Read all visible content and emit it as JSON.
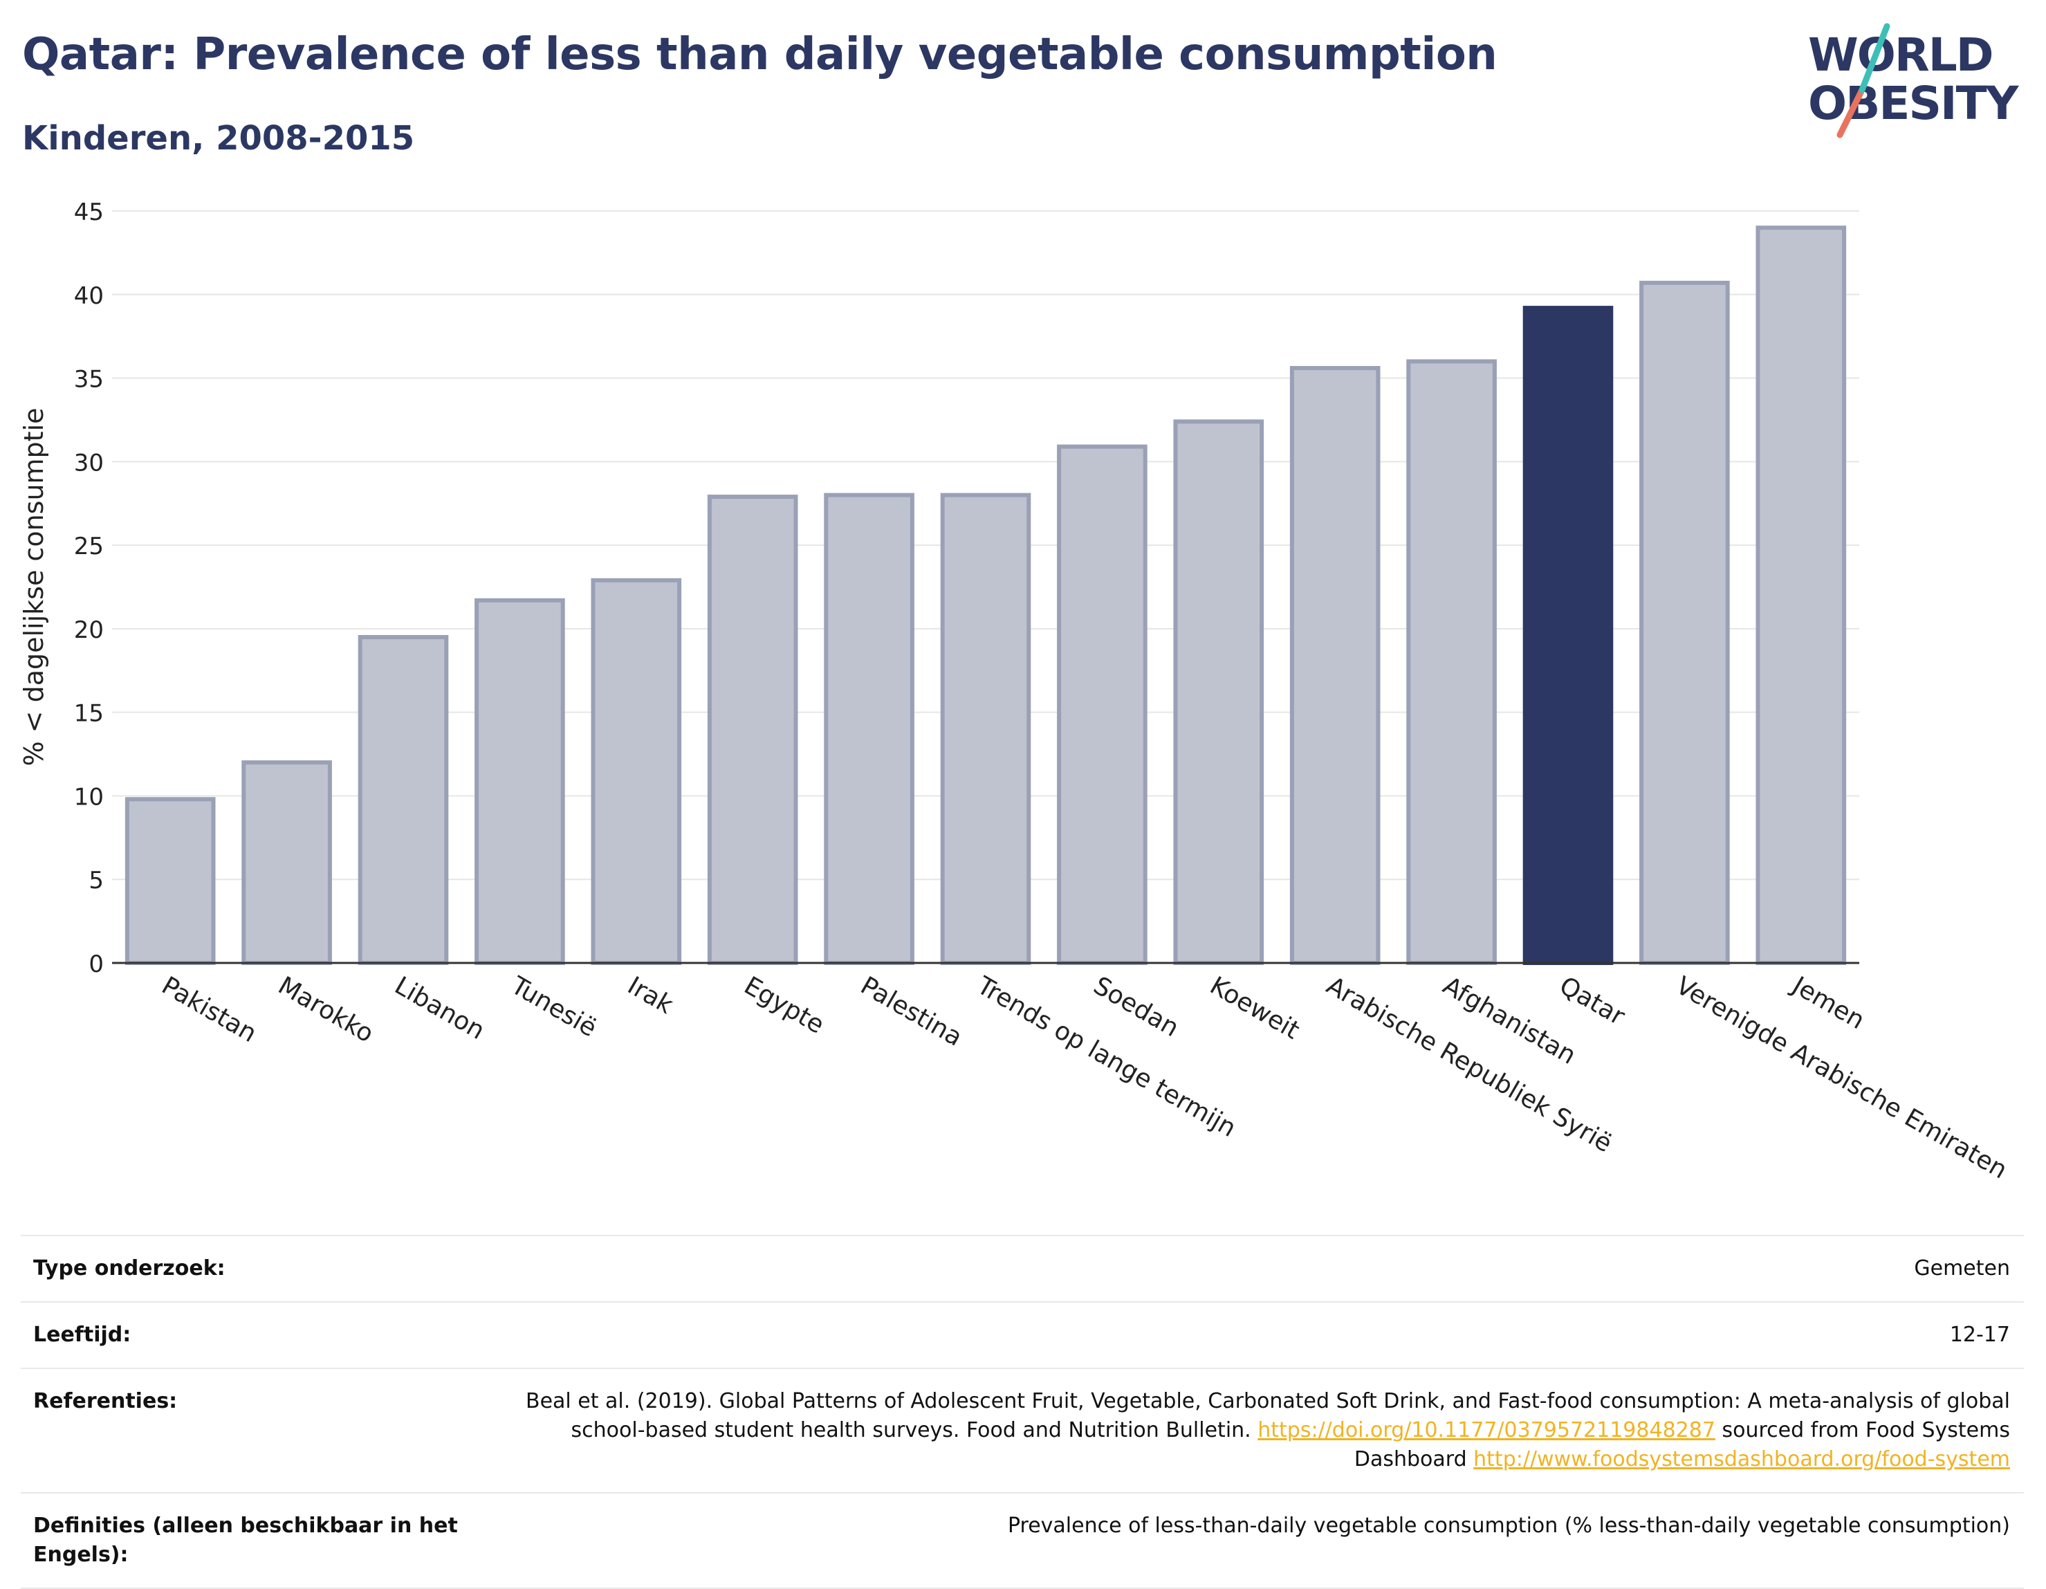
{
  "header": {
    "title": "Qatar: Prevalence of less than daily vegetable consumption",
    "subtitle": "Kinderen, 2008-2015"
  },
  "logo": {
    "line1": "WORLD",
    "line2": "OBESITY"
  },
  "colors": {
    "brand": "#2c3863",
    "bar_default": "#bfc3cf",
    "bar_border": "#9aa0b6",
    "bar_highlight": "#2c3863",
    "link": "#f0b323",
    "logo_teal": "#3dbfb8",
    "logo_coral": "#e8735f"
  },
  "chart_data": {
    "type": "bar",
    "title": "Qatar: Prevalence of less than daily vegetable consumption",
    "subtitle": "Kinderen, 2008-2015",
    "xlabel": "",
    "ylabel": "% < dagelijkse consumptie",
    "ylim": [
      0,
      45
    ],
    "yticks": [
      0,
      5,
      10,
      15,
      20,
      25,
      30,
      35,
      40,
      45
    ],
    "grid": true,
    "highlight": "Qatar",
    "categories": [
      "Pakistan",
      "Marokko",
      "Libanon",
      "Tunesië",
      "Irak",
      "Egypte",
      "Palestina",
      "Trends op lange termijn",
      "Soedan",
      "Koeweit",
      "Arabische Republiek Syrië",
      "Afghanistan",
      "Qatar",
      "Verenigde Arabische Emiraten",
      "Jemen"
    ],
    "values": [
      9.8,
      12.0,
      19.5,
      21.7,
      22.9,
      27.9,
      28.0,
      28.0,
      30.9,
      32.4,
      35.6,
      36.0,
      39.2,
      40.7,
      44.0
    ]
  },
  "info": {
    "rows": [
      {
        "label": "Type onderzoek:",
        "value": "Gemeten"
      },
      {
        "label": "Leeftijd:",
        "value": "12-17"
      },
      {
        "label": "Referenties:",
        "value_part1": "Beal et al. (2019). Global Patterns of Adolescent Fruit, Vegetable, Carbonated Soft Drink, and Fast-food consumption: A meta-analysis of global school-based student health surveys. Food and Nutrition Bulletin. ",
        "link1": "https://doi.org/10.1177/0379572119848287",
        "value_part2": " sourced from Food Systems Dashboard ",
        "link2": "http://www.foodsystemsdashboard.org/food-system"
      },
      {
        "label": "Definities (alleen beschikbaar in het Engels):",
        "value": "Prevalence of less-than-daily vegetable consumption (% less-than-daily vegetable consumption)"
      }
    ]
  }
}
